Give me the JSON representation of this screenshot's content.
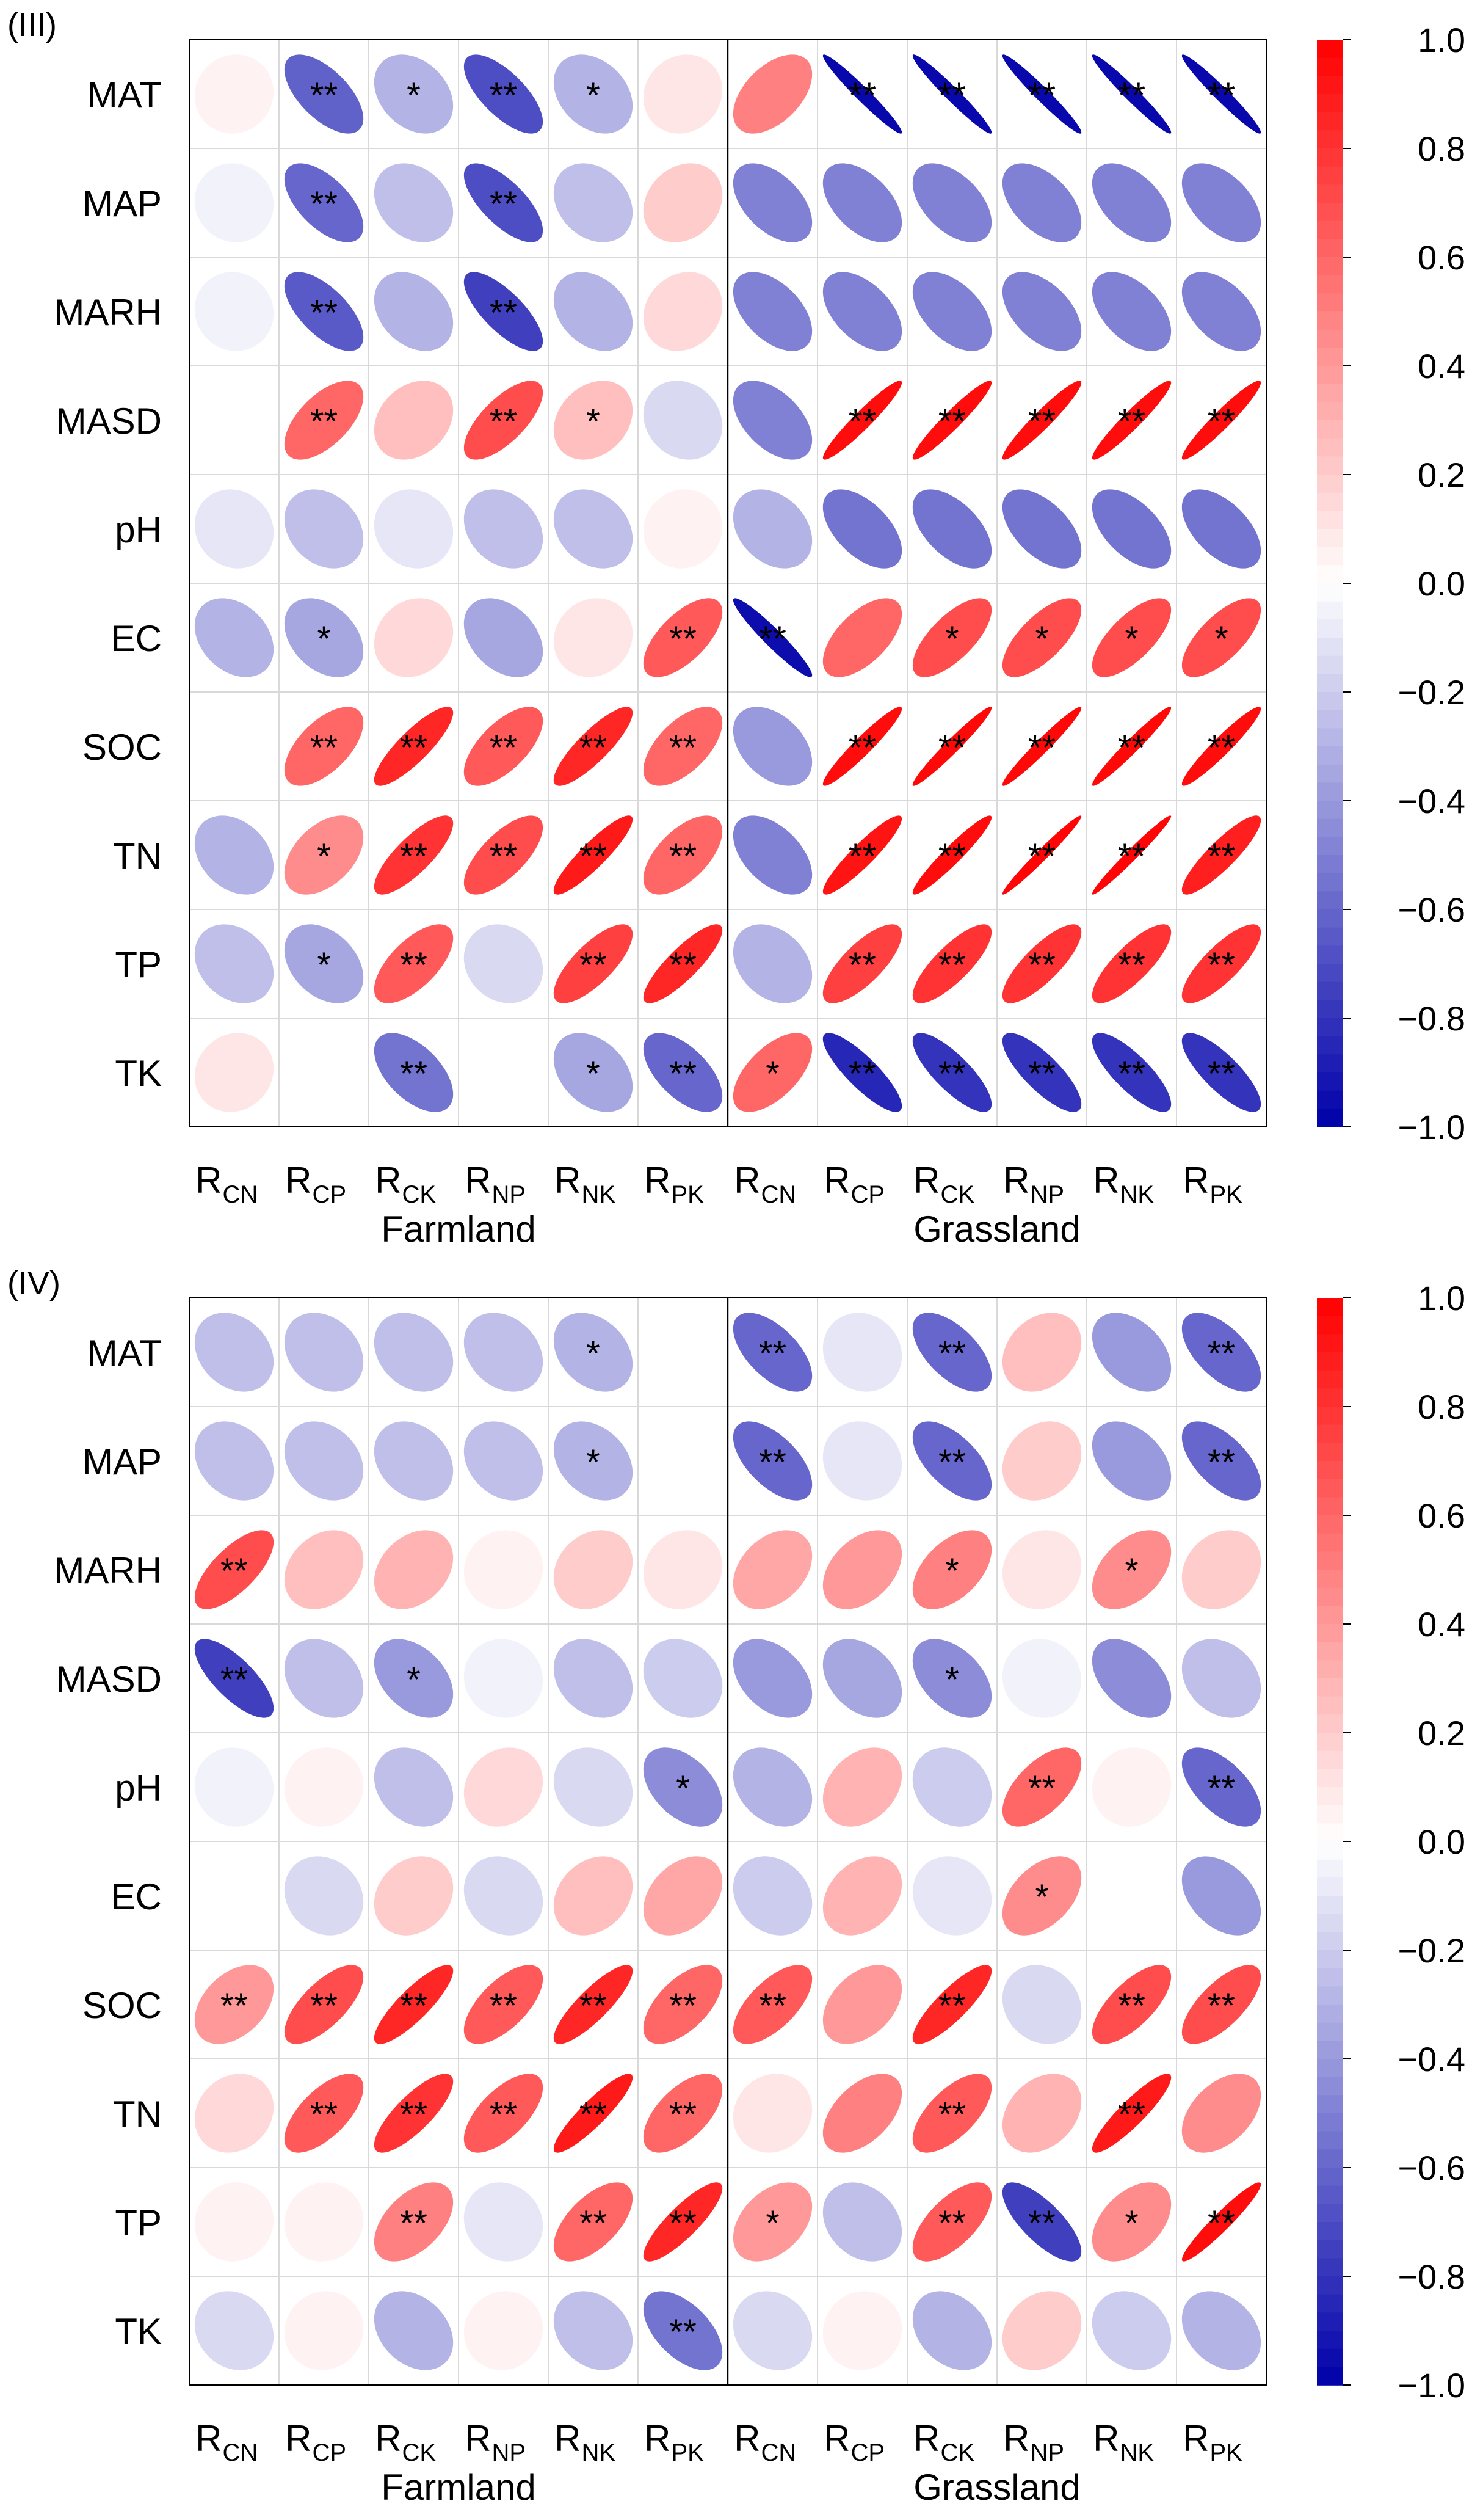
{
  "chart_data": [
    {
      "type": "heatmap",
      "panel_label": "(III)",
      "rows": [
        "MAT",
        "MAP",
        "MARH",
        "MASD",
        "pH",
        "EC",
        "SOC",
        "TN",
        "TP",
        "TK"
      ],
      "columns": [
        {
          "base": "R",
          "sub": "CN"
        },
        {
          "base": "R",
          "sub": "CP"
        },
        {
          "base": "R",
          "sub": "CK"
        },
        {
          "base": "R",
          "sub": "NP"
        },
        {
          "base": "R",
          "sub": "NK"
        },
        {
          "base": "R",
          "sub": "PK"
        },
        {
          "base": "R",
          "sub": "CN"
        },
        {
          "base": "R",
          "sub": "CP"
        },
        {
          "base": "R",
          "sub": "CK"
        },
        {
          "base": "R",
          "sub": "NP"
        },
        {
          "base": "R",
          "sub": "NK"
        },
        {
          "base": "R",
          "sub": "PK"
        }
      ],
      "groups": [
        "Farmland",
        "Grassland"
      ],
      "values": [
        [
          0.05,
          -0.62,
          -0.3,
          -0.7,
          -0.3,
          0.1,
          0.5,
          -0.97,
          -0.97,
          -0.97,
          -0.97,
          -0.97
        ],
        [
          -0.05,
          -0.6,
          -0.25,
          -0.7,
          -0.25,
          0.2,
          -0.5,
          -0.5,
          -0.5,
          -0.5,
          -0.5,
          -0.5
        ],
        [
          -0.05,
          -0.65,
          -0.3,
          -0.75,
          -0.3,
          0.15,
          -0.5,
          -0.5,
          -0.5,
          -0.5,
          -0.5,
          -0.5
        ],
        [
          0.0,
          0.6,
          0.25,
          0.7,
          0.25,
          -0.15,
          -0.5,
          0.95,
          0.95,
          0.95,
          0.95,
          0.95
        ],
        [
          -0.1,
          -0.25,
          -0.1,
          -0.25,
          -0.25,
          0.05,
          -0.3,
          -0.55,
          -0.55,
          -0.55,
          -0.55,
          -0.55
        ],
        [
          -0.3,
          -0.35,
          0.15,
          -0.35,
          0.1,
          0.65,
          -0.95,
          0.6,
          0.7,
          0.7,
          0.7,
          0.7
        ],
        [
          0.0,
          0.6,
          0.85,
          0.65,
          0.85,
          0.6,
          -0.4,
          0.95,
          0.97,
          0.97,
          0.97,
          0.95
        ],
        [
          -0.3,
          0.45,
          0.8,
          0.7,
          0.9,
          0.6,
          -0.5,
          0.92,
          0.95,
          0.98,
          0.98,
          0.88
        ],
        [
          -0.25,
          -0.35,
          0.65,
          -0.15,
          0.75,
          0.85,
          -0.3,
          0.75,
          0.8,
          0.8,
          0.8,
          0.8
        ],
        [
          0.1,
          0.0,
          -0.55,
          0.0,
          -0.35,
          -0.6,
          0.6,
          -0.85,
          -0.8,
          -0.8,
          -0.8,
          -0.8
        ]
      ],
      "significance": [
        [
          "",
          "**",
          "*",
          "**",
          "*",
          "",
          "",
          "**",
          "**",
          "**",
          "**",
          "**"
        ],
        [
          "",
          "**",
          "",
          "**",
          "",
          "",
          "",
          "",
          "",
          "",
          "",
          ""
        ],
        [
          "",
          "**",
          "",
          "**",
          "",
          "",
          "",
          "",
          "",
          "",
          "",
          ""
        ],
        [
          "",
          "**",
          "",
          "**",
          "*",
          "",
          "",
          "**",
          "**",
          "**",
          "**",
          "**"
        ],
        [
          "",
          "",
          "",
          "",
          "",
          "",
          "",
          "",
          "",
          "",
          "",
          ""
        ],
        [
          "",
          "*",
          "",
          "",
          "",
          "**",
          "**",
          "",
          "*",
          "*",
          "*",
          "*"
        ],
        [
          "",
          "**",
          "**",
          "**",
          "**",
          "**",
          "",
          "**",
          "**",
          "**",
          "**",
          "**"
        ],
        [
          "",
          "*",
          "**",
          "**",
          "**",
          "**",
          "",
          "**",
          "**",
          "**",
          "**",
          "**"
        ],
        [
          "",
          "*",
          "**",
          "",
          "**",
          "**",
          "",
          "**",
          "**",
          "**",
          "**",
          "**"
        ],
        [
          "",
          "",
          "**",
          "",
          "*",
          "**",
          "*",
          "**",
          "**",
          "**",
          "**",
          "**"
        ]
      ],
      "colorbar": {
        "ticks": [
          "1.0",
          "0.8",
          "0.6",
          "0.4",
          "0.2",
          "0.0",
          "−0.2",
          "−0.4",
          "−0.6",
          "−0.8",
          "−1.0"
        ],
        "range": [
          -1,
          1
        ]
      },
      "colors": {
        "negative": "#0000aa",
        "neutral": "#ffffff",
        "positive": "#ff0000"
      }
    },
    {
      "type": "heatmap",
      "panel_label": "(IV)",
      "rows": [
        "MAT",
        "MAP",
        "MARH",
        "MASD",
        "pH",
        "EC",
        "SOC",
        "TN",
        "TP",
        "TK"
      ],
      "columns": [
        {
          "base": "R",
          "sub": "CN"
        },
        {
          "base": "R",
          "sub": "CP"
        },
        {
          "base": "R",
          "sub": "CK"
        },
        {
          "base": "R",
          "sub": "NP"
        },
        {
          "base": "R",
          "sub": "NK"
        },
        {
          "base": "R",
          "sub": "PK"
        },
        {
          "base": "R",
          "sub": "CN"
        },
        {
          "base": "R",
          "sub": "CP"
        },
        {
          "base": "R",
          "sub": "CK"
        },
        {
          "base": "R",
          "sub": "NP"
        },
        {
          "base": "R",
          "sub": "NK"
        },
        {
          "base": "R",
          "sub": "PK"
        }
      ],
      "groups": [
        "Farmland",
        "Grassland"
      ],
      "values": [
        [
          -0.25,
          -0.25,
          -0.25,
          -0.25,
          -0.3,
          0.0,
          -0.6,
          -0.1,
          -0.6,
          0.25,
          -0.4,
          -0.6
        ],
        [
          -0.25,
          -0.25,
          -0.25,
          -0.25,
          -0.3,
          0.0,
          -0.6,
          -0.1,
          -0.6,
          0.2,
          -0.4,
          -0.6
        ],
        [
          0.7,
          0.25,
          0.3,
          0.05,
          0.2,
          0.1,
          0.35,
          0.4,
          0.5,
          0.1,
          0.45,
          0.2
        ],
        [
          -0.75,
          -0.25,
          -0.4,
          -0.05,
          -0.25,
          -0.2,
          -0.4,
          -0.35,
          -0.45,
          -0.05,
          -0.45,
          -0.25
        ],
        [
          -0.05,
          0.05,
          -0.25,
          0.15,
          -0.15,
          -0.45,
          -0.3,
          0.3,
          -0.2,
          0.6,
          0.05,
          -0.6
        ],
        [
          0.0,
          -0.15,
          0.2,
          -0.15,
          0.25,
          0.35,
          -0.2,
          0.3,
          -0.1,
          0.45,
          0.0,
          -0.4
        ],
        [
          0.4,
          0.7,
          0.85,
          0.65,
          0.85,
          0.6,
          0.65,
          0.4,
          0.85,
          -0.15,
          0.7,
          0.7
        ],
        [
          0.15,
          0.65,
          0.8,
          0.65,
          0.9,
          0.6,
          0.1,
          0.5,
          0.65,
          0.3,
          0.9,
          0.45
        ],
        [
          0.05,
          0.05,
          0.5,
          -0.1,
          0.6,
          0.85,
          0.4,
          -0.25,
          0.65,
          -0.75,
          0.45,
          0.95
        ],
        [
          -0.15,
          0.05,
          -0.3,
          0.05,
          -0.25,
          -0.55,
          -0.15,
          0.05,
          -0.3,
          0.2,
          -0.2,
          -0.3
        ]
      ],
      "significance": [
        [
          "",
          "",
          "",
          "",
          "*",
          "",
          "**",
          "",
          "**",
          "",
          "",
          "**"
        ],
        [
          "",
          "",
          "",
          "",
          "*",
          "",
          "**",
          "",
          "**",
          "",
          "",
          "**"
        ],
        [
          "**",
          "",
          "",
          "",
          "",
          "",
          "",
          "",
          "*",
          "",
          "*",
          ""
        ],
        [
          "**",
          "",
          "*",
          "",
          "",
          "",
          "",
          "",
          "*",
          "",
          "",
          ""
        ],
        [
          "",
          "",
          "",
          "",
          "",
          "*",
          "",
          "",
          "",
          "**",
          "",
          "**"
        ],
        [
          "",
          "",
          "",
          "",
          "",
          "",
          "",
          "",
          "",
          "*",
          "",
          ""
        ],
        [
          "**",
          "**",
          "**",
          "**",
          "**",
          "**",
          "**",
          "",
          "**",
          "",
          "**",
          "**"
        ],
        [
          "",
          "**",
          "**",
          "**",
          "**",
          "**",
          "",
          "",
          "**",
          "",
          "**",
          ""
        ],
        [
          "",
          "",
          "**",
          "",
          "**",
          "**",
          "*",
          "",
          "**",
          "**",
          "*",
          "**"
        ],
        [
          "",
          "",
          "",
          "",
          "",
          "**",
          "",
          "",
          "",
          "",
          "",
          ""
        ]
      ],
      "colorbar": {
        "ticks": [
          "1.0",
          "0.8",
          "0.6",
          "0.4",
          "0.2",
          "0.0",
          "−0.2",
          "−0.4",
          "−0.6",
          "−0.8",
          "−1.0"
        ],
        "range": [
          -1,
          1
        ]
      },
      "colors": {
        "negative": "#0000aa",
        "neutral": "#ffffff",
        "positive": "#ff0000"
      }
    }
  ]
}
